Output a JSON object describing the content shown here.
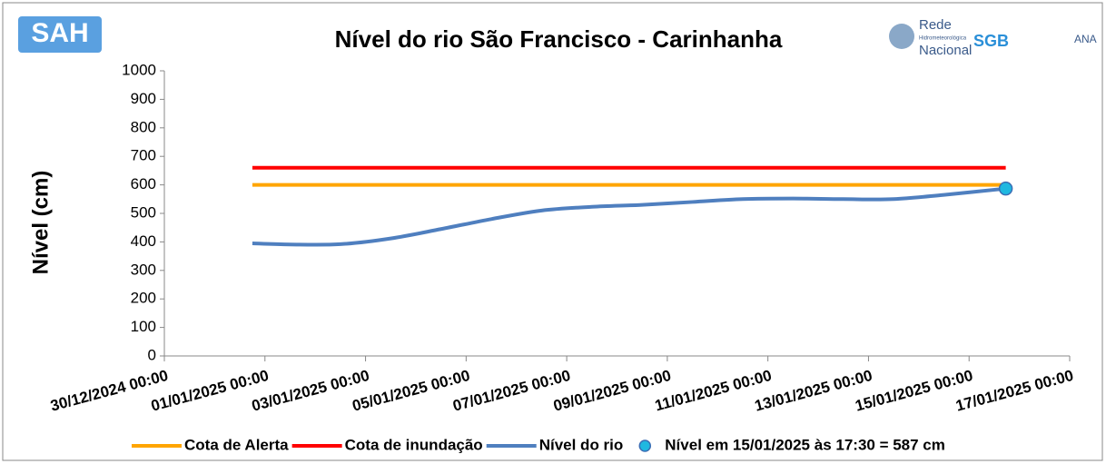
{
  "logos": {
    "left": "SAH",
    "rede": "Rede",
    "hidro": "Hidrometeorológica",
    "nacional": "Nacional",
    "sgb": "SGB",
    "ana": "ANA"
  },
  "chart_data": {
    "type": "line",
    "title": "Nível do rio São Francisco - Carinhanha",
    "y_label": "Nível (cm)",
    "ylim": [
      0,
      1000
    ],
    "yticks": [
      0,
      100,
      200,
      300,
      400,
      500,
      600,
      700,
      800,
      900,
      1000
    ],
    "xlim": [
      "30/12/2024 00:00",
      "17/01/2025 00:00"
    ],
    "xticks": [
      "30/12/2024 00:00",
      "01/01/2025 00:00",
      "03/01/2025 00:00",
      "05/01/2025 00:00",
      "07/01/2025 00:00",
      "09/01/2025 00:00",
      "11/01/2025 00:00",
      "13/01/2025 00:00",
      "15/01/2025 00:00",
      "17/01/2025 00:00"
    ],
    "legend": "bottom",
    "series": [
      {
        "name": "Cota de Alerta",
        "color": "#ffa500",
        "x": [
          "31/12/2024 18:00",
          "15/01/2025 17:30"
        ],
        "values": [
          600,
          600
        ]
      },
      {
        "name": "Cota de inundação",
        "color": "#ff0000",
        "x": [
          "31/12/2024 18:00",
          "15/01/2025 17:30"
        ],
        "values": [
          660,
          660
        ]
      },
      {
        "name": "Nível do rio",
        "color": "#4f7fbf",
        "x": [
          "31/12/2024 18:00",
          "01/01/2025 12:00",
          "02/01/2025 12:00",
          "03/01/2025 12:00",
          "04/01/2025 12:00",
          "05/01/2025 12:00",
          "06/01/2025 12:00",
          "07/01/2025 12:00",
          "08/01/2025 12:00",
          "09/01/2025 12:00",
          "10/01/2025 12:00",
          "11/01/2025 12:00",
          "12/01/2025 12:00",
          "13/01/2025 12:00",
          "14/01/2025 12:00",
          "15/01/2025 17:30"
        ],
        "values": [
          395,
          391,
          392,
          412,
          445,
          480,
          510,
          523,
          530,
          540,
          550,
          552,
          550,
          550,
          565,
          587
        ]
      },
      {
        "name": "Nível em 15/01/2025 às 17:30 = 587 cm",
        "color": "#1fb8e0",
        "marker": true,
        "x": [
          "15/01/2025 17:30"
        ],
        "values": [
          587
        ]
      }
    ]
  }
}
